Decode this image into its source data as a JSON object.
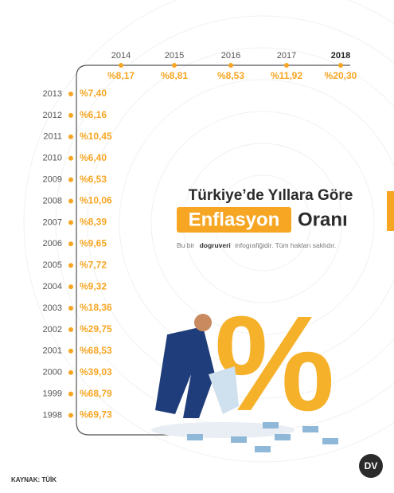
{
  "title": {
    "line1": "Türkiye’de Yıllara Göre",
    "highlight": "Enflasyon",
    "rest": "Oranı"
  },
  "subtitle": {
    "prefix": "Bu bir",
    "brand": "dogruveri",
    "suffix": "infografiğidir. Tüm hakları saklıdır."
  },
  "top_row": [
    {
      "year": "2014",
      "value": "%8,17"
    },
    {
      "year": "2015",
      "value": "%8,81"
    },
    {
      "year": "2016",
      "value": "%8,53"
    },
    {
      "year": "2017",
      "value": "%11,92"
    },
    {
      "year": "2018",
      "value": "%20,30"
    }
  ],
  "left_column": [
    {
      "year": "2013",
      "value": "%7,40"
    },
    {
      "year": "2012",
      "value": "%6,16"
    },
    {
      "year": "2011",
      "value": "%10,45"
    },
    {
      "year": "2010",
      "value": "%6,40"
    },
    {
      "year": "2009",
      "value": "%6,53"
    },
    {
      "year": "2008",
      "value": "%10,06"
    },
    {
      "year": "2007",
      "value": "%8,39"
    },
    {
      "year": "2006",
      "value": "%9,65"
    },
    {
      "year": "2005",
      "value": "%7,72"
    },
    {
      "year": "2004",
      "value": "%9,32"
    },
    {
      "year": "2003",
      "value": "%18,36"
    },
    {
      "year": "2002",
      "value": "%29,75"
    },
    {
      "year": "2001",
      "value": "%68,53"
    },
    {
      "year": "2000",
      "value": "%39,03"
    },
    {
      "year": "1999",
      "value": "%68,79"
    },
    {
      "year": "1998",
      "value": "%69,73"
    }
  ],
  "source": "KAYNAK: TÜİK",
  "logo": "DV"
}
